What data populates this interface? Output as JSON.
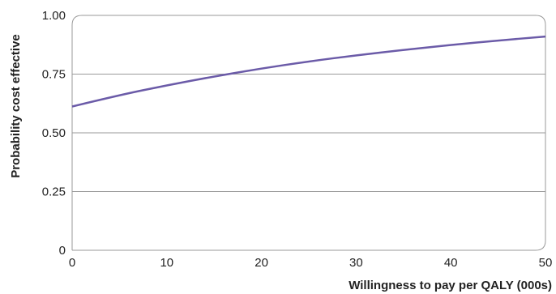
{
  "chart_data": {
    "type": "line",
    "title": "",
    "xlabel": "Willingness to pay per QALY (000s)",
    "ylabel": "Probability cost effective",
    "xlim": [
      0,
      50
    ],
    "ylim": [
      0,
      1
    ],
    "x_ticks": [
      0,
      10,
      20,
      30,
      40,
      50
    ],
    "x_tick_labels": [
      "0",
      "10",
      "20",
      "30",
      "40",
      "50"
    ],
    "y_ticks": [
      0,
      0.25,
      0.5,
      0.75,
      1
    ],
    "y_tick_labels": [
      "0",
      "0.25",
      "0.50",
      "0.75",
      "1.00"
    ],
    "grid": "horizontal",
    "legend": "none",
    "line_color": "#6b5ba8",
    "series": [
      {
        "x": [
          0,
          5,
          10,
          15,
          20,
          25,
          30,
          35,
          40,
          45,
          50
        ],
        "values": [
          0.612,
          0.661,
          0.702,
          0.74,
          0.774,
          0.804,
          0.83,
          0.853,
          0.874,
          0.893,
          0.91
        ]
      }
    ]
  }
}
